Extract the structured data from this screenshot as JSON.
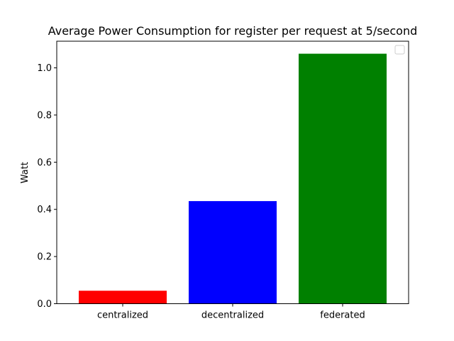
{
  "chart_data": {
    "type": "bar",
    "title": "Average Power Consumption for register per request at 5/second",
    "xlabel": "",
    "ylabel": "Watt",
    "categories": [
      "centralized",
      "decentralized",
      "federated"
    ],
    "values": [
      0.055,
      0.435,
      1.06
    ],
    "colors": [
      "#ff0000",
      "#0000ff",
      "#008000"
    ],
    "ylim": [
      0,
      1.113
    ],
    "yticks": [
      0.0,
      0.2,
      0.4,
      0.6,
      0.8,
      1.0
    ],
    "ytick_labels": [
      "0.0",
      "0.2",
      "0.4",
      "0.6",
      "0.8",
      "1.0"
    ],
    "grid": false,
    "legend": {
      "placement": "upper-right",
      "entries": []
    }
  }
}
